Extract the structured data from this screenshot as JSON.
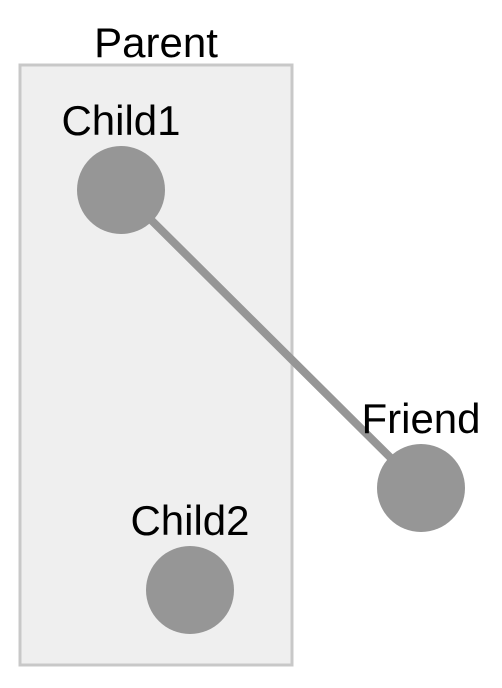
{
  "parent": {
    "label": "Parent"
  },
  "nodes": {
    "child1": {
      "label": "Child1"
    },
    "child2": {
      "label": "Child2"
    },
    "friend": {
      "label": "Friend"
    }
  },
  "edges": [
    {
      "from": "Child1",
      "to": "Friend"
    }
  ],
  "colors": {
    "container_fill": "#efefef",
    "container_stroke": "#c8c8c8",
    "node_fill": "#969696",
    "edge_stroke": "#969696",
    "text": "#000000"
  }
}
